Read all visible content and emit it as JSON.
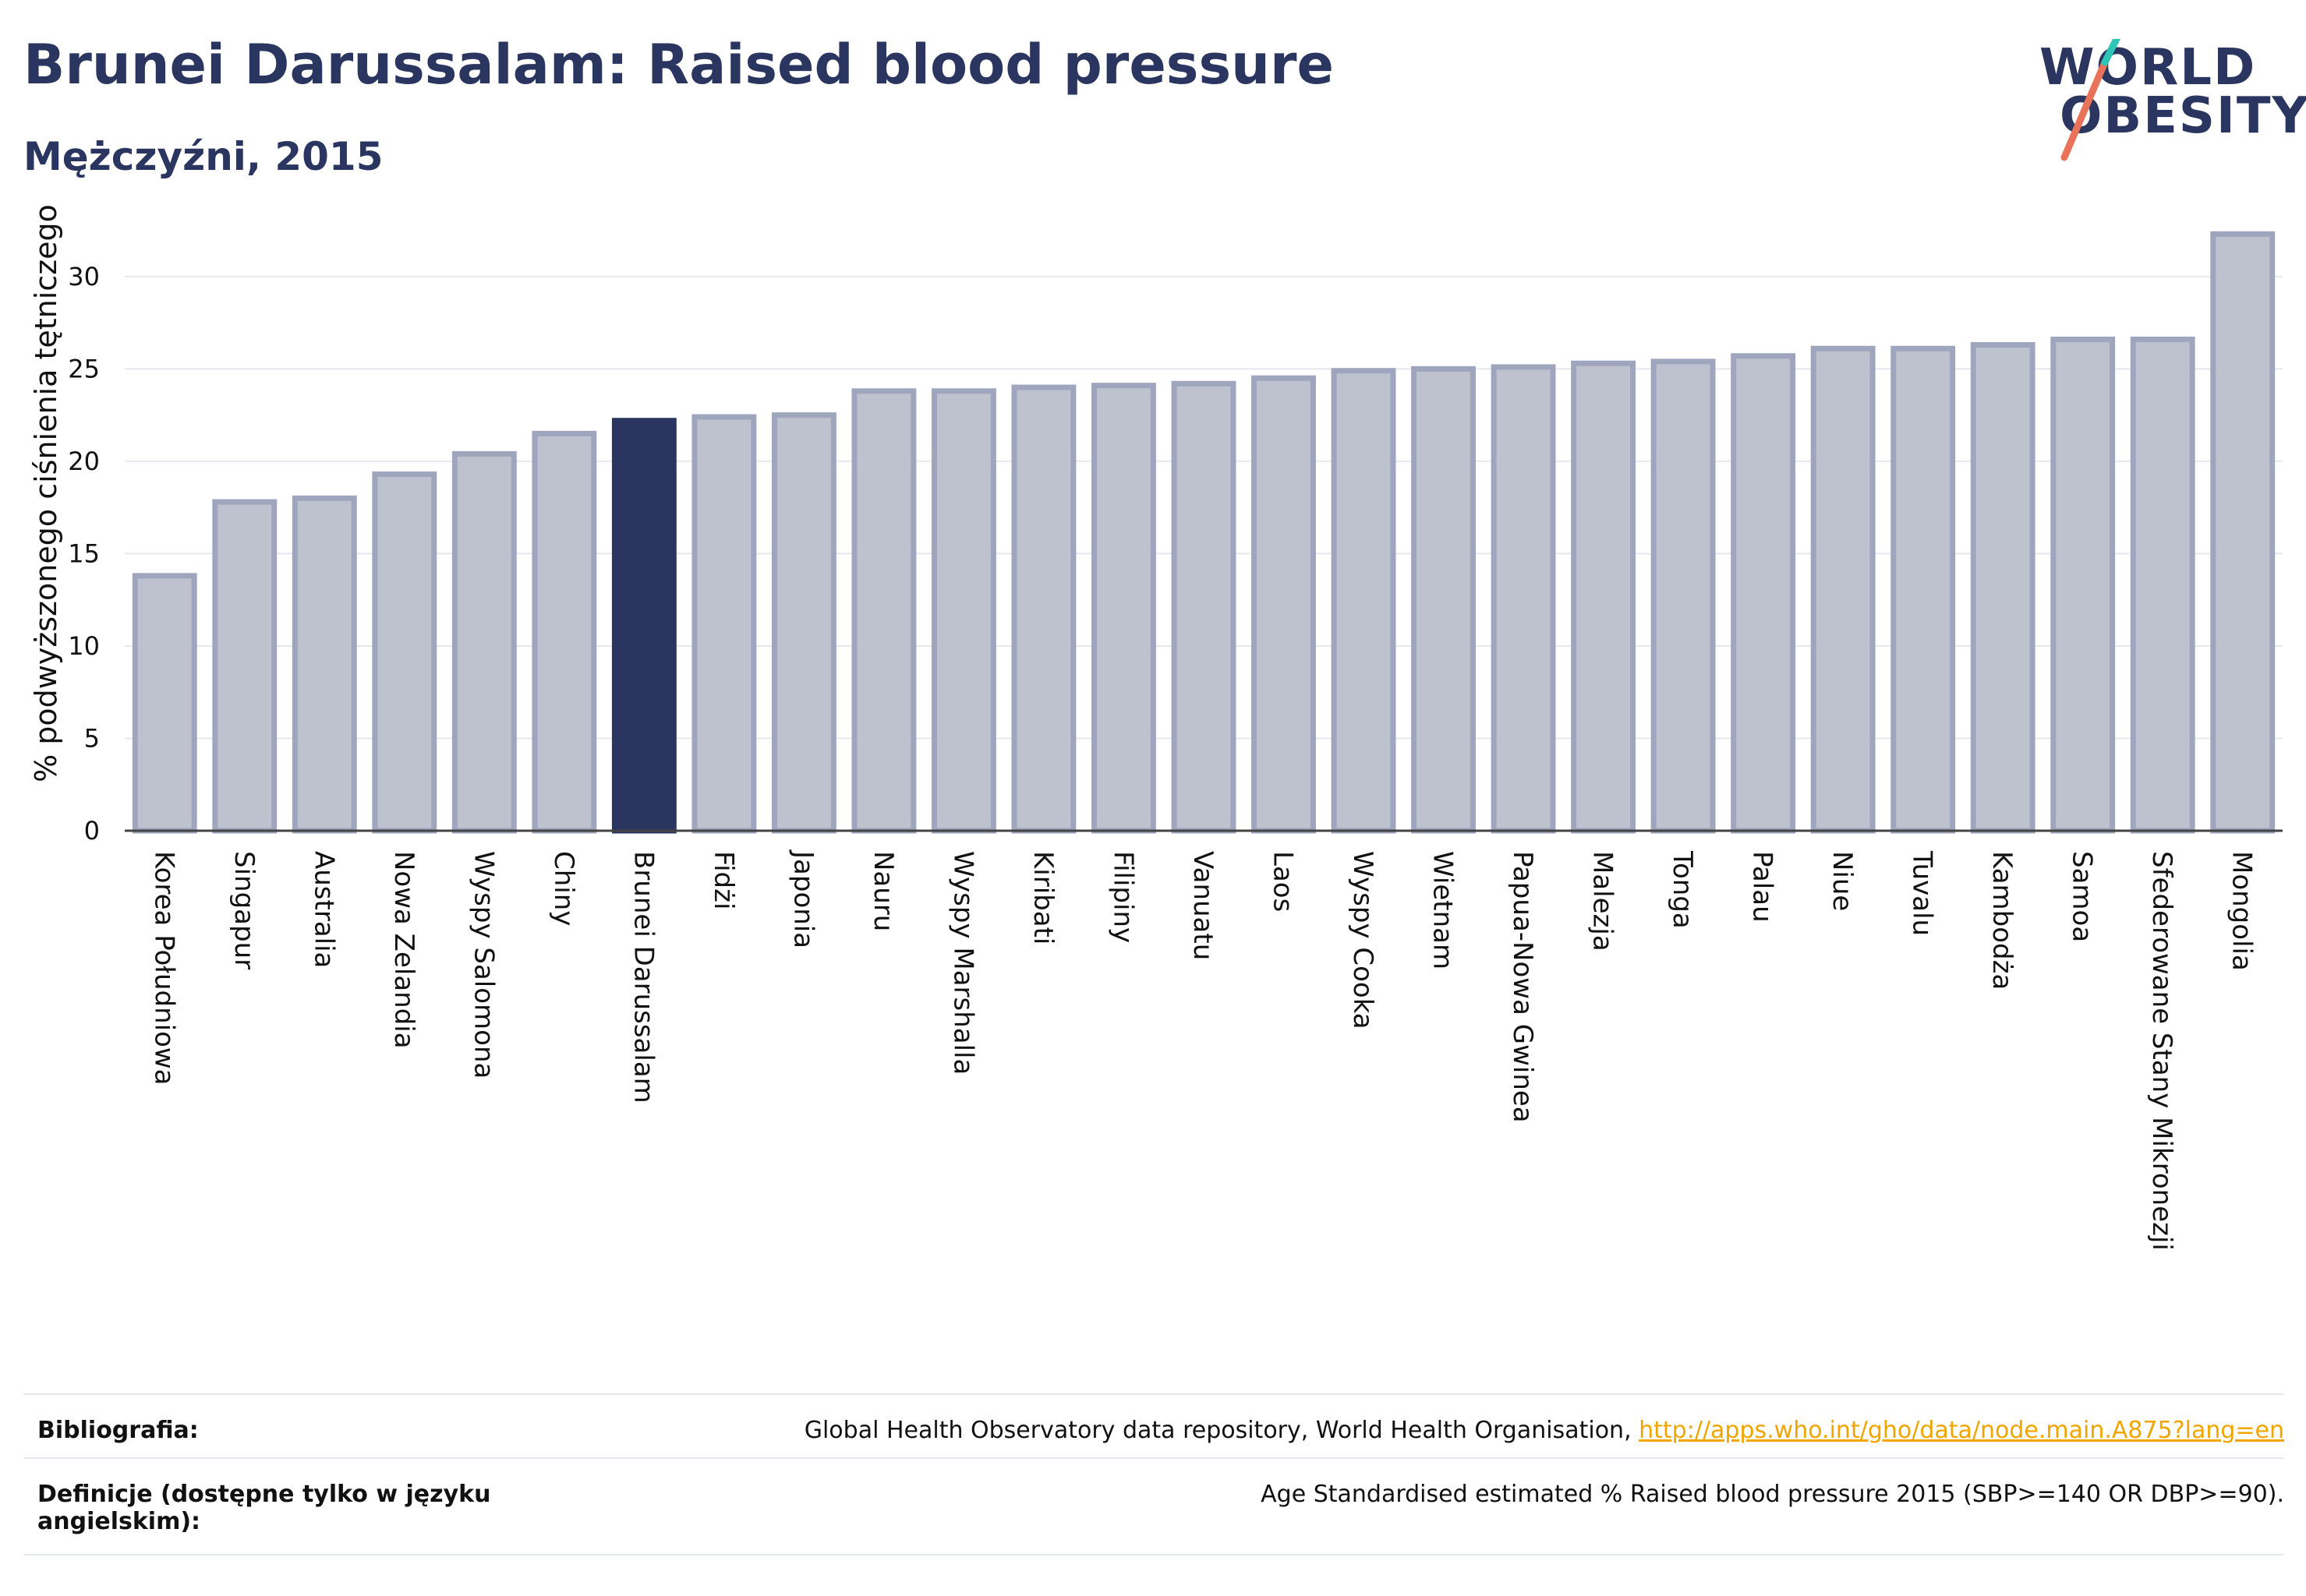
{
  "header": {
    "title": "Brunei Darussalam: Raised blood pressure",
    "subtitle": "Mężczyźni, 2015"
  },
  "logo": {
    "line1": "WORLD",
    "line2": "OBESITY",
    "accent_colors": [
      "#2ec4b6",
      "#e8735a"
    ]
  },
  "colors": {
    "highlight": "#2a3560",
    "bar": "#bec2cf",
    "bar_border": "#9ea5bd",
    "link": "#f0a500",
    "grid": "#e6e8f0"
  },
  "chart_data": {
    "type": "bar",
    "ylabel": "% podwyższonego ciśnienia tętniczego",
    "ylim": [
      0,
      34
    ],
    "yticks": [
      0,
      5,
      10,
      15,
      20,
      25,
      30
    ],
    "grid": true,
    "highlight": "Brunei Darussalam",
    "categories": [
      "Korea Południowa",
      "Singapur",
      "Australia",
      "Nowa Zelandia",
      "Wyspy Salomona",
      "Chiny",
      "Brunei Darussalam",
      "Fidżi",
      "Japonia",
      "Nauru",
      "Wyspy Marshalla",
      "Kiribati",
      "Filipiny",
      "Vanuatu",
      "Laos",
      "Wyspy Cooka",
      "Wietnam",
      "Papua-Nowa Gwinea",
      "Malezja",
      "Tonga",
      "Palau",
      "Niue",
      "Tuvalu",
      "Kambodża",
      "Samoa",
      "Sfederowane Stany Mikronezji",
      "Mongolia"
    ],
    "values": [
      13.8,
      17.8,
      18.0,
      19.3,
      20.4,
      21.5,
      22.2,
      22.4,
      22.5,
      23.8,
      23.8,
      24.0,
      24.1,
      24.2,
      24.5,
      24.9,
      25.0,
      25.1,
      25.3,
      25.4,
      25.7,
      26.1,
      26.1,
      26.3,
      26.6,
      26.6,
      32.3
    ]
  },
  "footer": {
    "bibliography_label": "Bibliografia:",
    "bibliography_text": "Global Health Observatory data repository, World Health Organisation, ",
    "bibliography_link": "http://apps.who.int/gho/data/node.main.A875?lang=en",
    "definitions_label_1": "Definicje (dostępne tylko w języku",
    "definitions_label_2": "angielskim):",
    "definitions_text": "Age Standardised estimated % Raised blood pressure 2015 (SBP>=140 OR DBP>=90)."
  }
}
